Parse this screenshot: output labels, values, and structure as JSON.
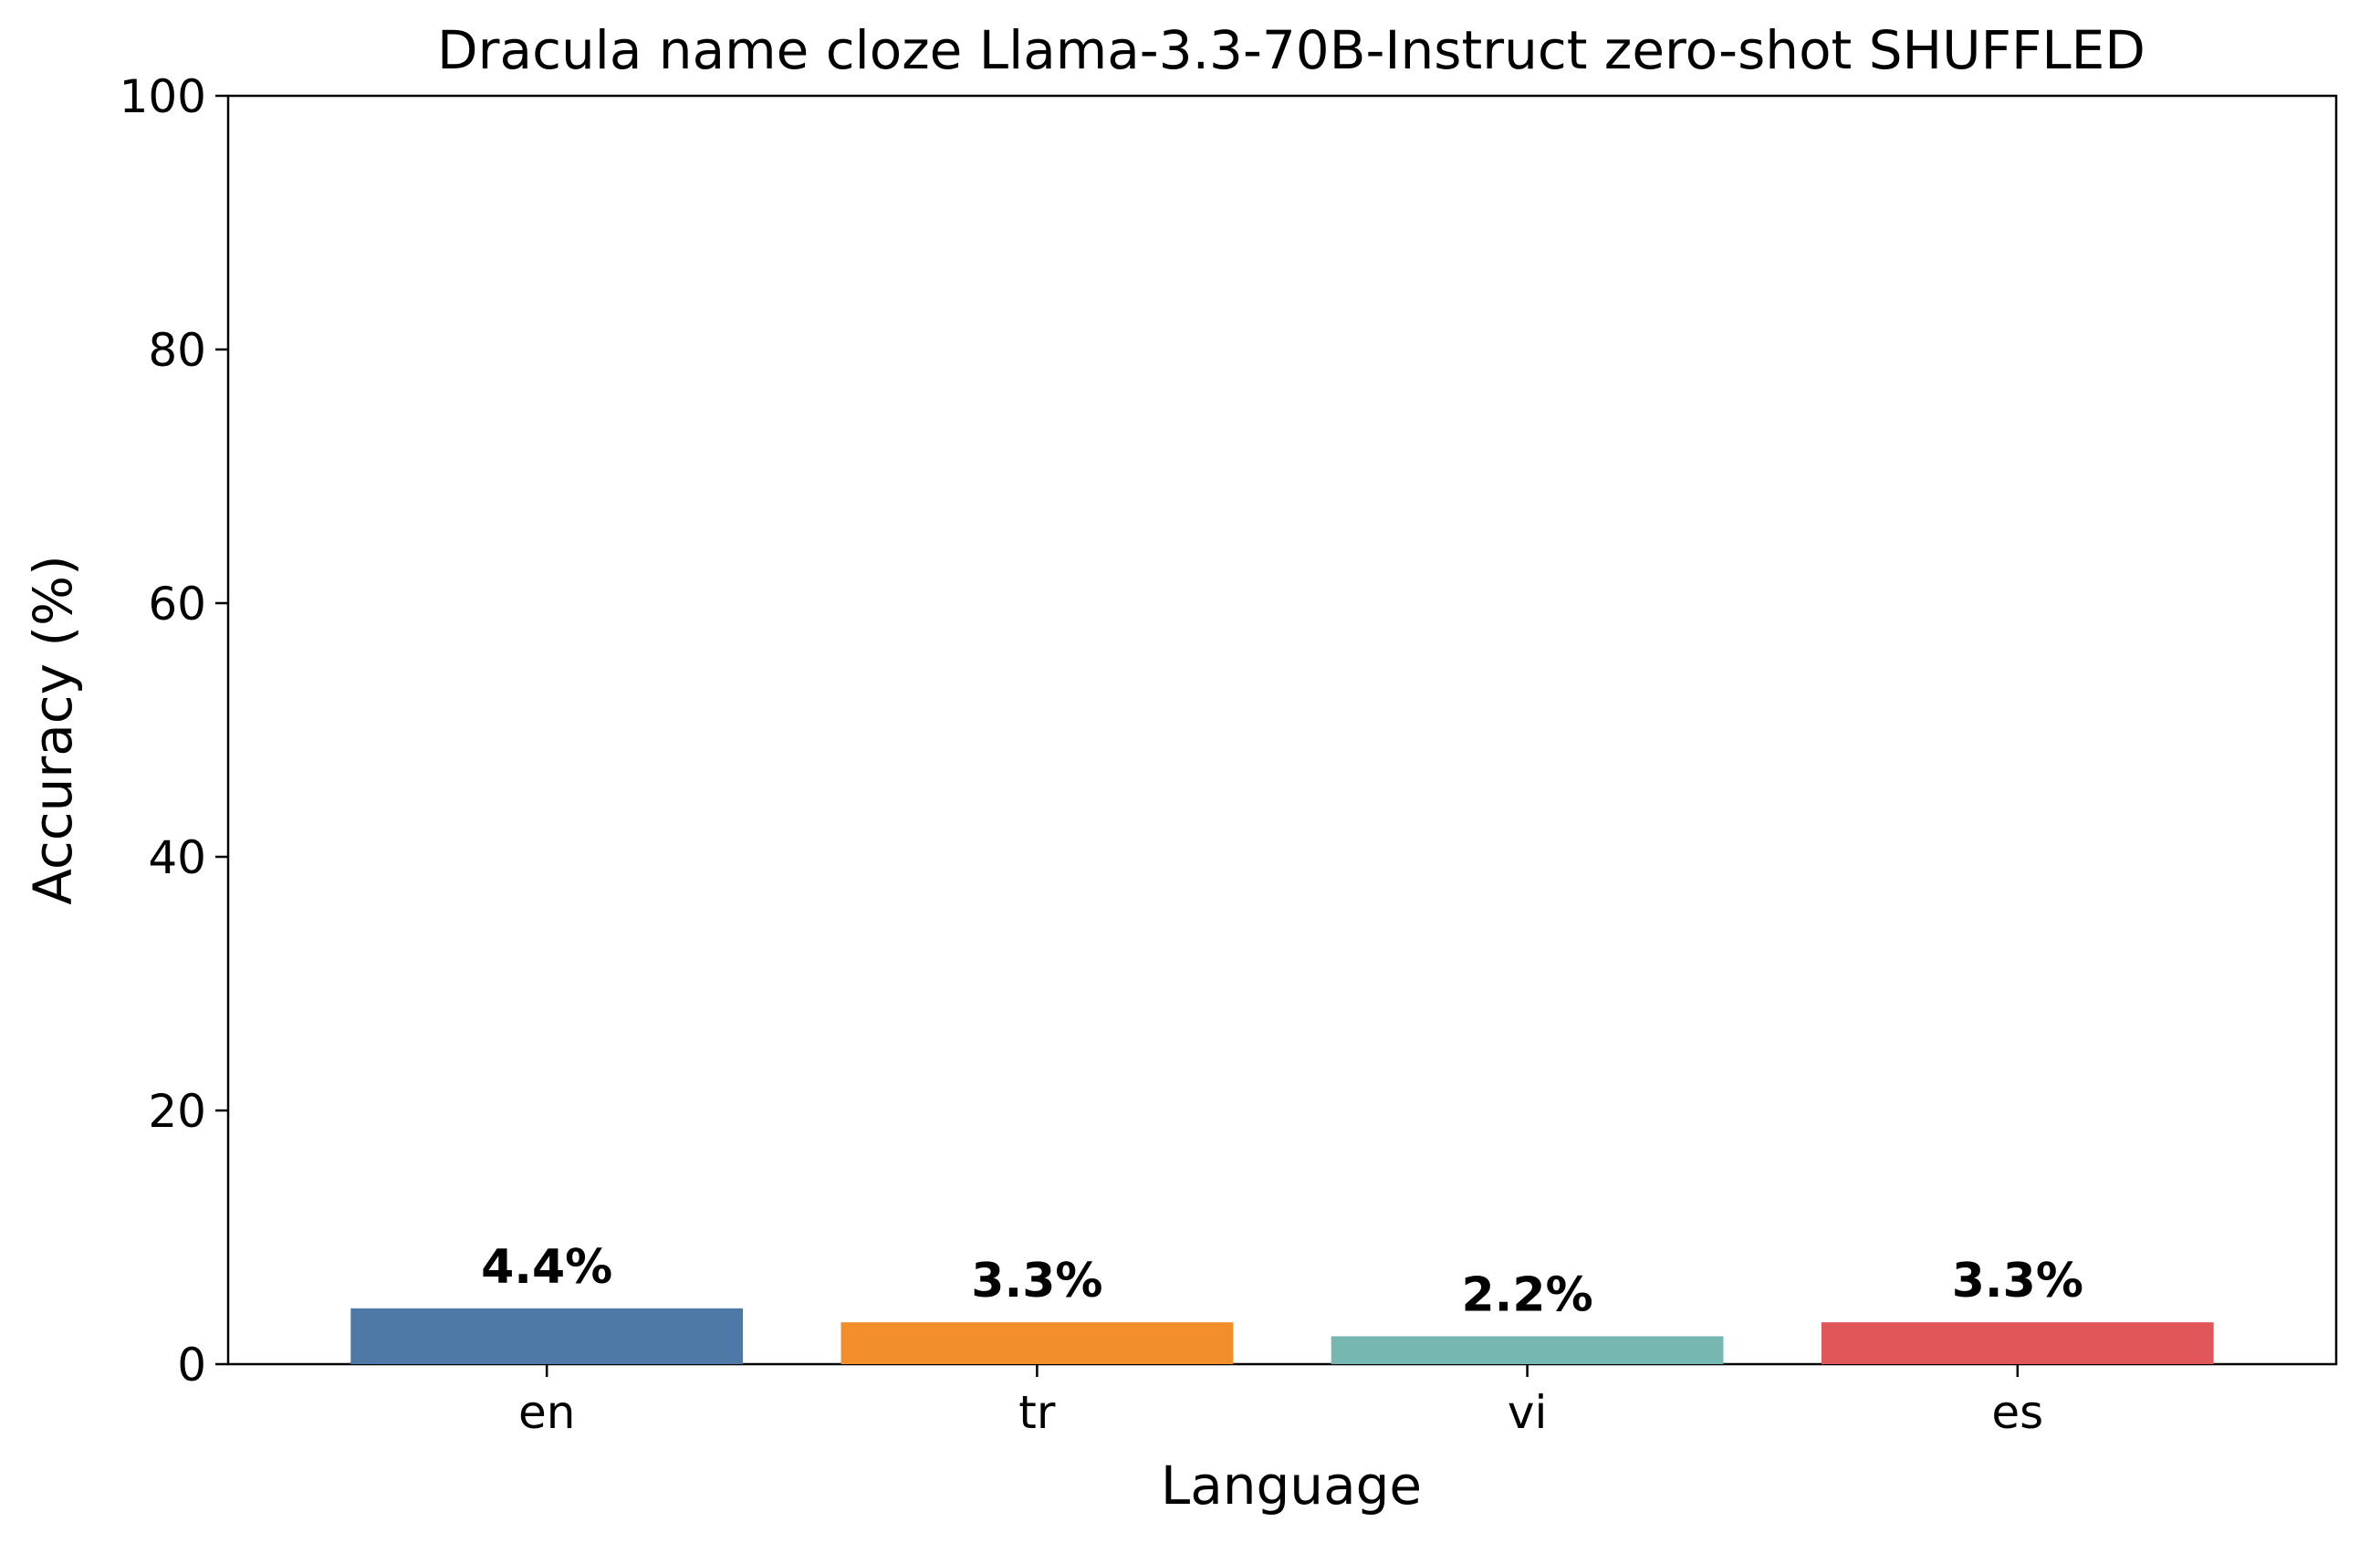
{
  "chart_data": {
    "type": "bar",
    "title": "Dracula name cloze Llama-3.3-70B-Instruct zero-shot SHUFFLED",
    "xlabel": "Language",
    "ylabel": "Accuracy (%)",
    "categories": [
      "en",
      "tr",
      "vi",
      "es"
    ],
    "values": [
      4.4,
      3.3,
      2.2,
      3.3
    ],
    "value_labels": [
      "4.4%",
      "3.3%",
      "2.2%",
      "3.3%"
    ],
    "colors": [
      "#4e79a7",
      "#f28e2b",
      "#76b7b2",
      "#e15759"
    ],
    "ylim": [
      0,
      100
    ],
    "yticks": [
      0,
      20,
      40,
      60,
      80,
      100
    ],
    "ytick_labels": [
      "0",
      "20",
      "40",
      "60",
      "80",
      "100"
    ],
    "grid": false,
    "legend": "none"
  }
}
